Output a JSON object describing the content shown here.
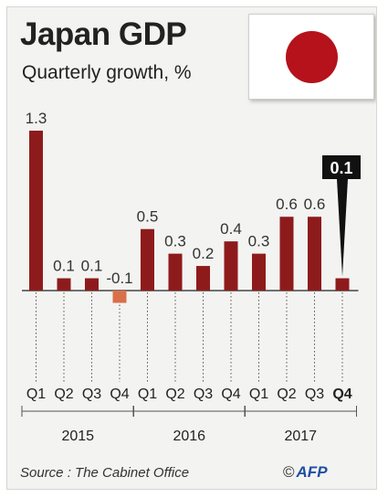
{
  "header": {
    "title": "Japan GDP",
    "subtitle": "Quarterly growth, %"
  },
  "flag": {
    "name": "japan-flag",
    "disc_color": "#b5121b"
  },
  "chart_data": {
    "type": "bar",
    "title": "Japan GDP",
    "subtitle": "Quarterly growth, %",
    "categories": [
      "Q1",
      "Q2",
      "Q3",
      "Q4",
      "Q1",
      "Q2",
      "Q3",
      "Q4",
      "Q1",
      "Q2",
      "Q3",
      "Q4"
    ],
    "years": [
      "2015",
      "2016",
      "2017"
    ],
    "values": [
      1.3,
      0.1,
      0.1,
      -0.1,
      0.5,
      0.3,
      0.2,
      0.4,
      0.3,
      0.6,
      0.6,
      0.1
    ],
    "labels": [
      "1.3",
      "0.1",
      "0.1",
      "-0.1",
      "0.5",
      "0.3",
      "0.2",
      "0.4",
      "0.3",
      "0.6",
      "0.6",
      "0.1"
    ],
    "ylim": [
      -0.1,
      1.3
    ],
    "grid": false,
    "colors": {
      "positive": "#8e1b1b",
      "negative": "#d9704a",
      "highlight_box": "#111111"
    },
    "highlight": {
      "index": 11,
      "label": "0.1"
    }
  },
  "footer": {
    "source": "Source : The Cabinet Office",
    "credit_symbol": "©",
    "credit": "AFP"
  }
}
